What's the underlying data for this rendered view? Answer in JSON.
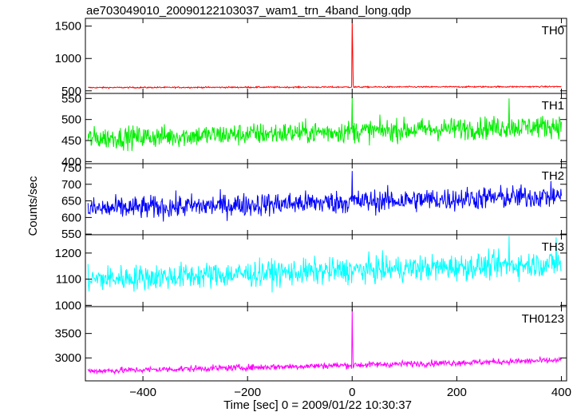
{
  "chart_data": {
    "type": "line",
    "title": "ae703049010_20090122103037_wam1_trn_4band_long.qdp",
    "xlabel": "Time [sec] 0 = 2009/01/22 10:30:37",
    "ylabel": "Counts/sec",
    "xlim": [
      -510,
      410
    ],
    "xticks": [
      -400,
      -200,
      0,
      200,
      400
    ],
    "xticklabels": [
      "−400",
      "−200",
      "0",
      "200",
      "400"
    ],
    "panels": [
      {
        "name": "TH0",
        "color": "#ff0000",
        "ylim": [
          460,
          1620
        ],
        "yticks": [
          500,
          1000,
          1500
        ],
        "noise": {
          "start": 550,
          "end": 565,
          "amp": 18
        },
        "anchors": [
          {
            "x": -1,
            "y": 560
          },
          {
            "x": 0,
            "y": 1600
          },
          {
            "x": 1,
            "y": 1150
          },
          {
            "x": 2,
            "y": 600
          }
        ]
      },
      {
        "name": "TH1",
        "color": "#00ee00",
        "ylim": [
          395,
          562
        ],
        "yticks": [
          400,
          450,
          500,
          550
        ],
        "noise": {
          "start": 455,
          "end": 485,
          "amp": 45
        },
        "anchors": [
          {
            "x": 0,
            "y": 555
          },
          {
            "x": 300,
            "y": 550
          }
        ]
      },
      {
        "name": "TH2",
        "color": "#0000ff",
        "ylim": [
          548,
          762
        ],
        "yticks": [
          550,
          600,
          650,
          700,
          750
        ],
        "noise": {
          "start": 625,
          "end": 665,
          "amp": 60
        },
        "anchors": [
          {
            "x": 0,
            "y": 740
          }
        ]
      },
      {
        "name": "TH3",
        "color": "#00ffff",
        "ylim": [
          995,
          1270
        ],
        "yticks": [
          1000,
          1100,
          1200
        ],
        "noise": {
          "start": 1100,
          "end": 1160,
          "amp": 85
        },
        "anchors": [
          {
            "x": 300,
            "y": 1265
          },
          {
            "x": 390,
            "y": 1260
          }
        ]
      },
      {
        "name": "TH0123",
        "color": "#ff00ff",
        "ylim": [
          2530,
          4050
        ],
        "yticks": [
          3000,
          3500
        ],
        "noise": {
          "start": 2730,
          "end": 2950,
          "amp": 110
        },
        "anchors": [
          {
            "x": -1,
            "y": 2780
          },
          {
            "x": 0,
            "y": 4000
          },
          {
            "x": 1,
            "y": 3250
          },
          {
            "x": 2,
            "y": 2800
          }
        ]
      }
    ],
    "grid": false,
    "legend": "none"
  }
}
